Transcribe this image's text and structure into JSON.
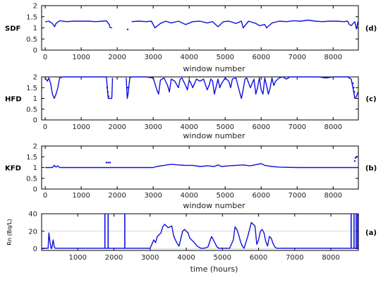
{
  "chart_data": [
    {
      "panel_tag": "(d)",
      "type": "line",
      "ylabel": "SDF",
      "xlabel": "window number",
      "xlim": [
        -100,
        8700
      ],
      "ylim": [
        0,
        2
      ],
      "xticks": [
        0,
        1000,
        2000,
        3000,
        4000,
        5000,
        6000,
        7000,
        8000
      ],
      "yticks": [
        0,
        0.5,
        1,
        1.5,
        2
      ],
      "ytick_labels": [
        "0",
        "0.5",
        "1",
        "1.5",
        "2"
      ],
      "grid": false,
      "gaps": [
        [
          1870,
          2250
        ],
        [
          2300,
          2400
        ]
      ],
      "isolated_points": [
        {
          "x": 2290,
          "y": 0.93
        }
      ],
      "series": [
        {
          "x": [
            0,
            100,
            200,
            260,
            300,
            400,
            600,
            800,
            1000,
            1200,
            1400,
            1600,
            1700,
            1780,
            1800,
            1860,
            2400,
            2600,
            2800,
            2950,
            3050,
            3200,
            3350,
            3500,
            3700,
            3900,
            4100,
            4300,
            4500,
            4650,
            4800,
            4950,
            5100,
            5300,
            5450,
            5500,
            5650,
            5850,
            5950,
            6100,
            6150,
            6300,
            6500,
            6700,
            6900,
            7100,
            7300,
            7500,
            7700,
            7900,
            8100,
            8300,
            8400,
            8450,
            8500,
            8600,
            8650,
            8690
          ],
          "y": [
            1.27,
            1.3,
            1.2,
            1.05,
            1.2,
            1.32,
            1.28,
            1.3,
            1.3,
            1.3,
            1.28,
            1.3,
            1.32,
            1.15,
            1.02,
            1.0,
            1.28,
            1.3,
            1.28,
            1.3,
            1.0,
            1.2,
            1.3,
            1.22,
            1.3,
            1.15,
            1.28,
            1.3,
            1.22,
            1.28,
            1.05,
            1.28,
            1.3,
            1.2,
            1.3,
            1.0,
            1.3,
            1.2,
            1.1,
            1.15,
            1.0,
            1.22,
            1.3,
            1.28,
            1.32,
            1.3,
            1.35,
            1.3,
            1.28,
            1.3,
            1.3,
            1.28,
            1.3,
            1.15,
            1.1,
            1.28,
            0.95,
            1.3
          ]
        }
      ]
    },
    {
      "panel_tag": "(c)",
      "type": "line",
      "ylabel": "HFD",
      "xlabel": "window number",
      "xlim": [
        -100,
        8700
      ],
      "ylim": [
        0,
        2
      ],
      "xticks": [
        0,
        1000,
        2000,
        3000,
        4000,
        5000,
        6000,
        7000,
        8000
      ],
      "yticks": [
        0,
        0.5,
        1,
        1.5,
        2
      ],
      "ytick_labels": [
        "0",
        "0.5",
        "1",
        "1.5",
        "2"
      ],
      "grid": false,
      "gaps": [
        [
          1870,
          2250
        ]
      ],
      "isolated_points": [
        {
          "x": 1720,
          "y": 1.5
        },
        {
          "x": 1740,
          "y": 1.3
        },
        {
          "x": 1760,
          "y": 1.1
        },
        {
          "x": 2290,
          "y": 1.5
        },
        {
          "x": 8550,
          "y": 1.7
        },
        {
          "x": 8570,
          "y": 1.5
        },
        {
          "x": 8590,
          "y": 1.3
        }
      ],
      "series": [
        {
          "x": [
            0,
            60,
            100,
            150,
            200,
            250,
            300,
            350,
            400,
            500,
            600,
            800,
            1000,
            1200,
            1400,
            1600,
            1700,
            1750,
            1800,
            1850,
            1870,
            2250,
            2280,
            2300,
            2350,
            2400,
            2600,
            2800,
            3000,
            3100,
            3150,
            3200,
            3300,
            3400,
            3450,
            3500,
            3600,
            3700,
            3750,
            3800,
            3900,
            3950,
            4000,
            4050,
            4100,
            4200,
            4300,
            4400,
            4500,
            4550,
            4600,
            4650,
            4700,
            4800,
            4850,
            4900,
            5000,
            5100,
            5150,
            5200,
            5300,
            5400,
            5450,
            5500,
            5550,
            5600,
            5700,
            5800,
            5850,
            5900,
            5950,
            6000,
            6050,
            6100,
            6150,
            6200,
            6250,
            6300,
            6350,
            6400,
            6500,
            6600,
            6700,
            6800,
            7000,
            7200,
            7400,
            7600,
            7800,
            8000,
            8200,
            8400,
            8500,
            8550,
            8600,
            8650,
            8690
          ],
          "y": [
            1.95,
            1.8,
            1.95,
            1.7,
            1.2,
            1.0,
            1.2,
            1.5,
            1.95,
            2.0,
            2.0,
            2.0,
            2.0,
            2.0,
            2.0,
            2.0,
            2.0,
            1.0,
            1.0,
            1.0,
            1.95,
            1.95,
            1.0,
            1.2,
            1.95,
            2.0,
            2.0,
            2.0,
            1.95,
            1.4,
            1.2,
            1.85,
            1.95,
            1.6,
            1.3,
            1.9,
            1.8,
            1.5,
            1.9,
            1.95,
            1.6,
            1.4,
            1.85,
            1.7,
            1.5,
            1.9,
            1.8,
            1.9,
            1.4,
            1.6,
            1.9,
            1.8,
            1.2,
            1.9,
            1.5,
            1.7,
            1.95,
            1.8,
            1.5,
            1.9,
            1.95,
            1.3,
            1.0,
            1.4,
            1.9,
            1.95,
            1.5,
            1.9,
            1.2,
            1.5,
            1.95,
            1.4,
            1.2,
            1.95,
            1.6,
            1.2,
            1.5,
            1.95,
            1.6,
            1.8,
            1.95,
            2.0,
            1.9,
            2.0,
            2.0,
            2.0,
            2.0,
            2.0,
            1.95,
            2.0,
            2.0,
            2.0,
            1.9,
            1.5,
            1.0,
            1.1,
            1.3
          ]
        }
      ]
    },
    {
      "panel_tag": "(b)",
      "type": "line",
      "ylabel": "KFD",
      "xlabel": "window number",
      "xlim": [
        -100,
        8700
      ],
      "ylim": [
        0,
        2
      ],
      "xticks": [
        0,
        1000,
        2000,
        3000,
        4000,
        5000,
        6000,
        7000,
        8000
      ],
      "yticks": [
        0,
        0.5,
        1,
        1.5,
        2
      ],
      "ytick_labels": [
        "0",
        "0.5",
        "1",
        "1.5",
        "2"
      ],
      "grid": false,
      "gaps": [],
      "isolated_points": [
        {
          "x": 1700,
          "y": 1.23
        },
        {
          "x": 1750,
          "y": 1.23
        },
        {
          "x": 1800,
          "y": 1.23
        },
        {
          "x": 8600,
          "y": 1.3
        },
        {
          "x": 8620,
          "y": 1.45
        },
        {
          "x": 8650,
          "y": 1.5
        }
      ],
      "series": [
        {
          "x": [
            0,
            200,
            250,
            300,
            350,
            400,
            500,
            1000,
            1500,
            2000,
            2500,
            3000,
            3100,
            3300,
            3500,
            3700,
            3900,
            4100,
            4300,
            4500,
            4700,
            4800,
            4900,
            5100,
            5300,
            5500,
            5700,
            5900,
            6000,
            6100,
            6300,
            6500,
            7000,
            7500,
            8000,
            8500,
            8690
          ],
          "y": [
            1.0,
            1.0,
            1.1,
            1.02,
            1.08,
            1.0,
            1.0,
            1.0,
            1.0,
            1.0,
            1.0,
            1.0,
            1.05,
            1.1,
            1.15,
            1.12,
            1.1,
            1.1,
            1.05,
            1.08,
            1.05,
            1.12,
            1.05,
            1.08,
            1.1,
            1.12,
            1.08,
            1.15,
            1.18,
            1.1,
            1.05,
            1.02,
            1.0,
            1.0,
            1.0,
            1.0,
            1.0
          ]
        }
      ]
    },
    {
      "panel_tag": "(a)",
      "type": "line",
      "ylabel": "Rn (Bq/L)",
      "xlabel": "time (hours)",
      "xlim": [
        0,
        8760
      ],
      "ylim": [
        -2,
        40
      ],
      "xticks": [
        1000,
        2000,
        3000,
        4000,
        5000,
        6000,
        7000,
        8000
      ],
      "yticks": [
        0,
        20,
        40
      ],
      "ytick_labels": [
        "0",
        "20",
        "40"
      ],
      "grid": true,
      "vertical_lines": [
        1750,
        1840,
        2300,
        8560,
        8640,
        8700,
        8740
      ],
      "series": [
        {
          "x": [
            0,
            100,
            180,
            200,
            230,
            260,
            280,
            320,
            350,
            380,
            500,
            1000,
            1500,
            2000,
            2500,
            3000,
            3050,
            3100,
            3150,
            3200,
            3300,
            3350,
            3400,
            3500,
            3600,
            3650,
            3700,
            3750,
            3800,
            3900,
            3950,
            4000,
            4050,
            4100,
            4200,
            4300,
            4400,
            4500,
            4600,
            4650,
            4700,
            4750,
            4800,
            4850,
            4900,
            5000,
            5100,
            5200,
            5300,
            5350,
            5400,
            5450,
            5500,
            5550,
            5600,
            5700,
            5800,
            5850,
            5900,
            5950,
            6000,
            6050,
            6100,
            6150,
            6200,
            6250,
            6300,
            6350,
            6400,
            6450,
            6500,
            6600,
            7000,
            7500,
            8000,
            8500,
            8760
          ],
          "y": [
            0.5,
            0.5,
            0.5,
            18,
            8,
            0.5,
            0.5,
            10,
            2,
            0.5,
            0.5,
            0.5,
            0.5,
            0.5,
            0.5,
            0.5,
            5,
            10,
            7,
            14,
            18,
            25,
            28,
            24,
            26,
            15,
            10,
            6,
            3,
            20,
            22,
            20,
            18,
            12,
            8,
            3,
            0.5,
            0.5,
            2,
            8,
            14,
            10,
            6,
            2,
            0.5,
            0.5,
            0.5,
            0.5,
            10,
            25,
            22,
            16,
            8,
            3,
            0.5,
            14,
            30,
            28,
            26,
            5,
            10,
            20,
            22,
            18,
            8,
            3,
            14,
            12,
            6,
            2,
            0.5,
            0.5,
            0.5,
            0.5,
            0.5,
            0.5,
            0.5
          ]
        }
      ]
    }
  ]
}
